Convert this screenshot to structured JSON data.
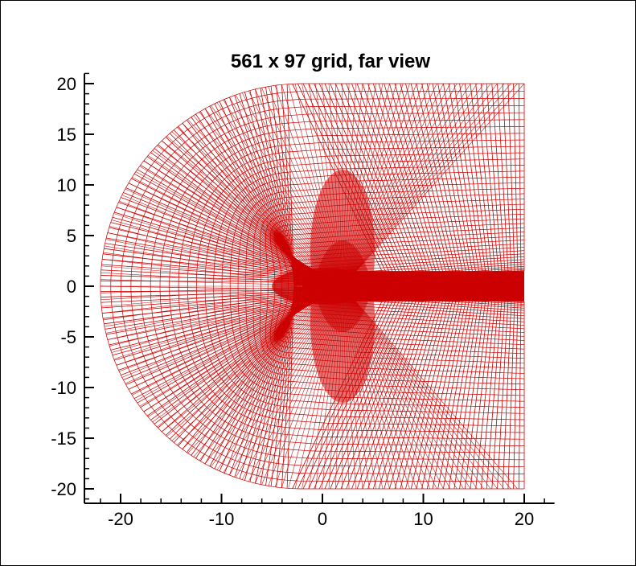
{
  "chart_data": {
    "type": "line",
    "title": "561 x 97 grid, far view",
    "xlabel": "",
    "ylabel": "",
    "xlim": [
      -24,
      23
    ],
    "ylim": [
      -21,
      21
    ],
    "x_ticks": [
      -20,
      -10,
      0,
      10,
      20
    ],
    "x_tick_labels": [
      "-20",
      "-10",
      "0",
      "10",
      "20"
    ],
    "y_ticks": [
      20,
      15,
      10,
      5,
      0,
      -5,
      -10,
      -15,
      -20
    ],
    "y_tick_labels": [
      "20",
      "15",
      "10",
      "5",
      "0",
      "-5",
      "-10",
      "-15",
      "-20"
    ],
    "grid_dimensions": [
      561,
      97
    ],
    "outer_boundary": {
      "center": [
        -2,
        0
      ],
      "radius": 20,
      "outflow_x": 20,
      "y_extent": [
        -20,
        20
      ]
    },
    "body_region_x": [
      -5,
      6
    ],
    "wake_half_thickness": 1.5,
    "grid_color": "#cc0000",
    "grid": false,
    "legend": "none"
  }
}
